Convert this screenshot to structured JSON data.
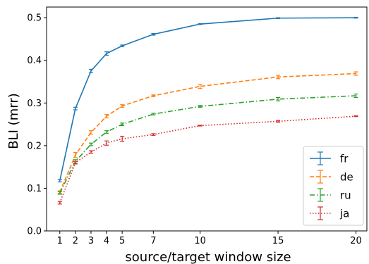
{
  "chart_data": {
    "type": "line",
    "title": "",
    "xlabel": "source/target window size",
    "ylabel": "BLI (mrr)",
    "x": [
      1,
      2,
      3,
      4,
      5,
      7,
      10,
      15,
      20
    ],
    "xlim": [
      0.15,
      20.7
    ],
    "ylim": [
      0.0,
      0.525
    ],
    "xticks": [
      1,
      2,
      3,
      4,
      5,
      7,
      10,
      15,
      20
    ],
    "yticks": [
      0.0,
      0.1,
      0.2,
      0.3,
      0.4,
      0.5
    ],
    "ytick_labels": [
      "0.0",
      "0.1",
      "0.2",
      "0.3",
      "0.4",
      "0.5"
    ],
    "grid": false,
    "legend_position": "bottom-right",
    "error_bars": true,
    "series": [
      {
        "name": "fr",
        "color": "#1f77b4",
        "dash": "solid",
        "values": [
          0.118,
          0.287,
          0.375,
          0.416,
          0.434,
          0.461,
          0.485,
          0.499,
          0.5
        ],
        "errors": [
          0.003,
          0.003,
          0.004,
          0.004,
          0.002,
          0.002,
          0.001,
          0.001,
          0.001
        ]
      },
      {
        "name": "de",
        "color": "#ff7f0e",
        "dash": "dashed",
        "values": [
          0.091,
          0.178,
          0.231,
          0.269,
          0.293,
          0.317,
          0.339,
          0.361,
          0.369
        ],
        "errors": [
          0.003,
          0.006,
          0.004,
          0.004,
          0.003,
          0.002,
          0.005,
          0.004,
          0.004
        ]
      },
      {
        "name": "ru",
        "color": "#2ca02c",
        "dash": "dashdot",
        "values": [
          0.089,
          0.163,
          0.203,
          0.232,
          0.25,
          0.274,
          0.292,
          0.309,
          0.317
        ],
        "errors": [
          0.003,
          0.004,
          0.003,
          0.003,
          0.003,
          0.002,
          0.002,
          0.004,
          0.004
        ]
      },
      {
        "name": "ja",
        "color": "#d62728",
        "dash": "dotted",
        "values": [
          0.066,
          0.16,
          0.185,
          0.206,
          0.216,
          0.226,
          0.247,
          0.257,
          0.269
        ],
        "errors": [
          0.003,
          0.003,
          0.003,
          0.005,
          0.006,
          0.002,
          0.001,
          0.002,
          0.001
        ]
      }
    ]
  }
}
